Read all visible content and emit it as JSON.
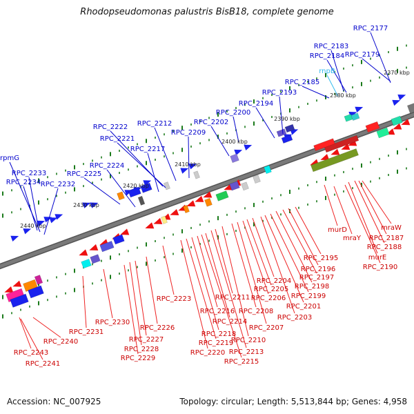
{
  "title": "Rhodopseudomonas palustris BisB18, complete genome",
  "accession": "Accession: NC_007925",
  "summary": "Topology: circular; Length: 5,513,844 bp; Genes: 4,958",
  "colors": {
    "top_label": "#0000cc",
    "rna_label": "#33bbee",
    "bottom_label": "#cc0000",
    "backbone": "#7a7a7a",
    "tick": "#1a7a1a"
  },
  "scale_labels": [
    "2370 kbp",
    "2380 kbp",
    "2390 kbp",
    "2400 kbp",
    "2410 kbp",
    "2420 kbp",
    "2430 kbp",
    "2440 kbp"
  ],
  "top_labels": [
    {
      "text": "RPC_2177",
      "rna": false
    },
    {
      "text": "RPC_2183",
      "rna": false
    },
    {
      "text": "RPC_2184",
      "rna": false
    },
    {
      "text": "RPC_2179",
      "rna": false
    },
    {
      "text": "rnpB",
      "rna": true
    },
    {
      "text": "RPC_2185",
      "rna": false
    },
    {
      "text": "RPC_2193",
      "rna": false
    },
    {
      "text": "RPC_2194",
      "rna": false
    },
    {
      "text": "RPC_2200",
      "rna": false
    },
    {
      "text": "RPC_2202",
      "rna": false
    },
    {
      "text": "RPC_2212",
      "rna": false
    },
    {
      "text": "RPC_2209",
      "rna": false
    },
    {
      "text": "RPC_2222",
      "rna": false
    },
    {
      "text": "RPC_2221",
      "rna": false
    },
    {
      "text": "RPC_2217",
      "rna": false
    },
    {
      "text": "RPC_2224",
      "rna": false
    },
    {
      "text": "RPC_2225",
      "rna": false
    },
    {
      "text": "rpmG",
      "rna": false
    },
    {
      "text": "RPC_2233",
      "rna": false
    },
    {
      "text": "RPC_2234",
      "rna": false
    },
    {
      "text": "RPC_2232",
      "rna": false
    }
  ],
  "bottom_labels": [
    "mraW",
    "RPC_2187",
    "RPC_2188",
    "murE",
    "RPC_2190",
    "murD",
    "mraY",
    "RPC_2195",
    "RPC_2196",
    "RPC_2197",
    "RPC_2198",
    "RPC_2199",
    "RPC_2201",
    "RPC_2203",
    "RPC_2204",
    "RPC_2205",
    "RPC_2206",
    "RPC_2207",
    "RPC_2208",
    "RPC_2210",
    "RPC_2211",
    "RPC_2213",
    "RPC_2214",
    "RPC_2215",
    "RPC_2216",
    "RPC_2218",
    "RPC_2219",
    "RPC_2220",
    "RPC_2223",
    "RPC_2226",
    "RPC_2227",
    "RPC_2228",
    "RPC_2229",
    "RPC_2230",
    "RPC_2231",
    "RPC_2240",
    "RPC_2243",
    "RPC_2241"
  ]
}
